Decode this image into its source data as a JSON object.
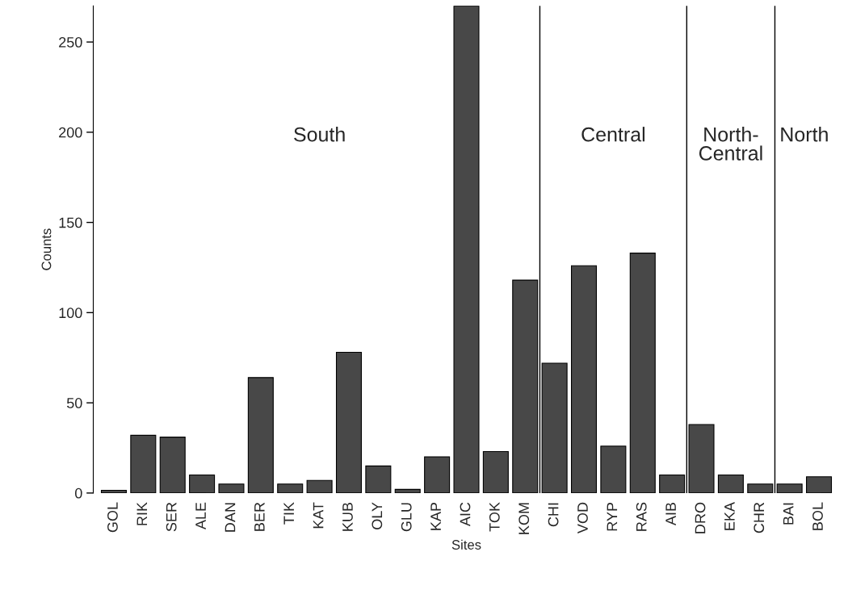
{
  "chart_data": {
    "type": "bar",
    "xlabel": "Sites",
    "ylabel": "Counts",
    "categories": [
      "GOL",
      "RIK",
      "SER",
      "ALE",
      "DAN",
      "BER",
      "TIK",
      "KAT",
      "KUB",
      "OLY",
      "GLU",
      "KAP",
      "AIC",
      "TOK",
      "KOM",
      "CHI",
      "VOD",
      "RYP",
      "RAS",
      "AIB",
      "DRO",
      "EKA",
      "CHR",
      "BAI",
      "BOL"
    ],
    "values": [
      1.5,
      32,
      31,
      10,
      5,
      64,
      5,
      7,
      78,
      15,
      2,
      20,
      270,
      23,
      118,
      72,
      126,
      26,
      133,
      10,
      38,
      10,
      5,
      5,
      9
    ],
    "color": "#484848",
    "ylim": [
      0,
      270
    ],
    "yticks": [
      0,
      50,
      100,
      150,
      200,
      250
    ],
    "annotations": [
      "South",
      "Central",
      "North-\nCentral",
      "North"
    ],
    "grid": false
  }
}
